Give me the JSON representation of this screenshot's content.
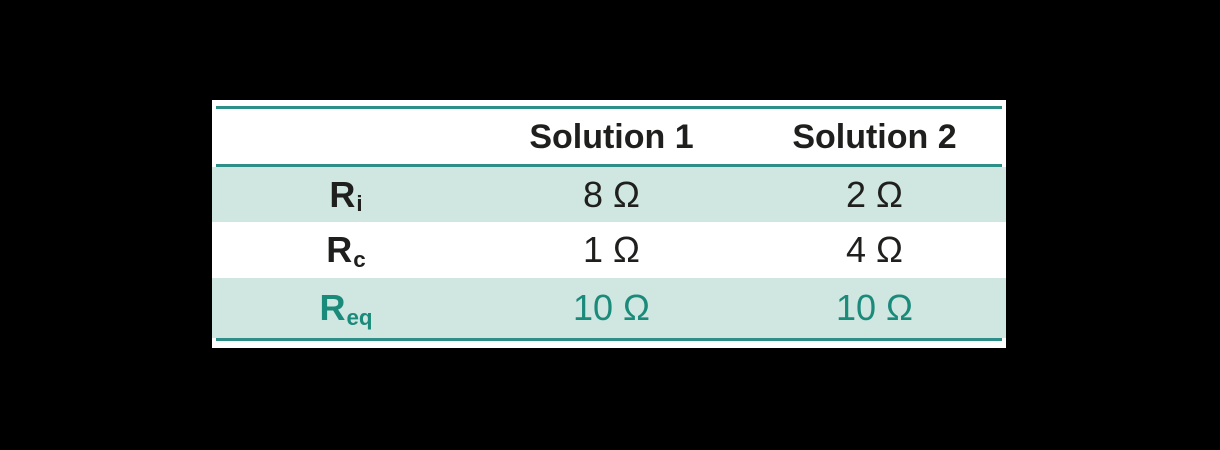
{
  "chart_data": {
    "type": "table",
    "title": "",
    "columns": [
      "",
      "Solution 1",
      "Solution 2"
    ],
    "rows": [
      {
        "label_base": "R",
        "label_sub": "i",
        "values": [
          "8 Ω",
          "2 Ω"
        ],
        "highlighted_band": true,
        "accent": false
      },
      {
        "label_base": "R",
        "label_sub": "c",
        "values": [
          "1 Ω",
          "4 Ω"
        ],
        "highlighted_band": false,
        "accent": false
      },
      {
        "label_base": "R",
        "label_sub": "eq",
        "values": [
          "10 Ω",
          "10 Ω"
        ],
        "highlighted_band": true,
        "accent": true
      }
    ],
    "numeric_values": {
      "unit": "Ω",
      "R_i": [
        8,
        2
      ],
      "R_c": [
        1,
        4
      ],
      "R_eq": [
        10,
        10
      ]
    },
    "layout_hints": {
      "grid": "horizontal rules only",
      "banding": "alternating light-teal rows",
      "accent_row": "R_eq"
    }
  },
  "colors": {
    "rule": "#2e8f88",
    "band": "#cfe6e1",
    "accent_text": "#1a8a7b",
    "text": "#1f1f1d",
    "table_bg": "#ffffff",
    "canvas_bg": "#000000"
  }
}
